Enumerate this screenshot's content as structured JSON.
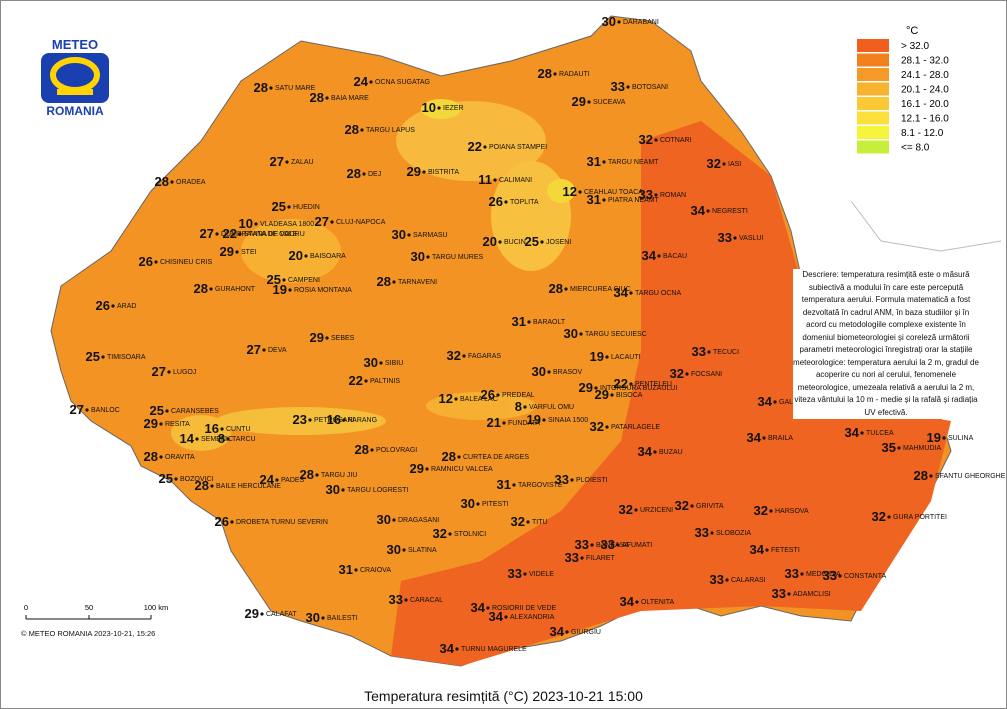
{
  "logo": {
    "line1": "METEO",
    "line2": "ROMANIA"
  },
  "legend": {
    "unit": "°C",
    "items": [
      {
        "label": "> 32.0",
        "color": "#f0601c"
      },
      {
        "label": "28.1 - 32.0",
        "color": "#f37f1f"
      },
      {
        "label": "24.1 - 28.0",
        "color": "#f59a26"
      },
      {
        "label": "20.1 - 24.0",
        "color": "#f7b22e"
      },
      {
        "label": "16.1 - 20.0",
        "color": "#f9c936"
      },
      {
        "label": "12.1 - 16.0",
        "color": "#fbdf3b"
      },
      {
        "label": "8.1 - 12.0",
        "color": "#f7f43c"
      },
      {
        "label": "<= 8.0",
        "color": "#c8ee3c"
      }
    ]
  },
  "description": "Descriere: temperatura resimțită este o măsură subiectivă a modului în care este percepută temperatura aerului. Formula matematică a fost dezvoltată în cadrul ANM, în baza studiilor și în acord cu metodologiile complexe existente în domeniul biometeorologiei și coreleză următorii parametri meteorologici înregistrați orar la stațiile meteorologice: temperatura aerului la 2 m, gradul de acoperire cu nori al cerului, fenomenele meteorologice, umezeala relativă a aerului la 2 m, viteza vântului la 10 m - medie și la rafală și radiația UV efectivă.",
  "scale": [
    "0",
    "50",
    "100 km"
  ],
  "copyright": "© METEO ROMANIA 2023-10-21, 15:26",
  "title": "Temperatura resimțită (°C) 2023-10-21 15:00",
  "stations": [
    {
      "name": "SATU MARE",
      "value": "28"
    },
    {
      "name": "OCNA SUGATAG",
      "value": "24"
    },
    {
      "name": "BAIA MARE",
      "value": "28"
    },
    {
      "name": "IEZER",
      "value": "10"
    },
    {
      "name": "TARGU LAPUS",
      "value": "28"
    },
    {
      "name": "ZALAU",
      "value": "27"
    },
    {
      "name": "DEJ",
      "value": "28"
    },
    {
      "name": "BISTRITA",
      "value": "29"
    },
    {
      "name": "ORADEA",
      "value": "28"
    },
    {
      "name": "VLADEASA 1800",
      "value": "10"
    },
    {
      "name": "HUEDIN",
      "value": "25"
    },
    {
      "name": "CLUJ-NAPOCA",
      "value": "27"
    },
    {
      "name": "SARMASU",
      "value": "30"
    },
    {
      "name": "STANA DE VALE",
      "value": "22"
    },
    {
      "name": "CHISINEU CRIS",
      "value": "26"
    },
    {
      "name": "DUMBRAVITA DE CODRU",
      "value": "27"
    },
    {
      "name": "STEI",
      "value": "29"
    },
    {
      "name": "BAISOARA",
      "value": "20"
    },
    {
      "name": "TARGU MURES",
      "value": "30"
    },
    {
      "name": "CAMPENI",
      "value": "25"
    },
    {
      "name": "ROSIA MONTANA",
      "value": "19"
    },
    {
      "name": "GURAHONT",
      "value": "28"
    },
    {
      "name": "TARNAVENI",
      "value": "28"
    },
    {
      "name": "ARAD",
      "value": "26"
    },
    {
      "name": "SEBES",
      "value": "29"
    },
    {
      "name": "DEVA",
      "value": "27"
    },
    {
      "name": "SIBIU",
      "value": "30"
    },
    {
      "name": "FAGARAS",
      "value": "32"
    },
    {
      "name": "TIMISOARA",
      "value": "25"
    },
    {
      "name": "LUGOJ",
      "value": "27"
    },
    {
      "name": "PALTINIS",
      "value": "22"
    },
    {
      "name": "BALEA LAC",
      "value": "12"
    },
    {
      "name": "VARFUL OMU",
      "value": "8"
    },
    {
      "name": "PREDEAL",
      "value": "26"
    },
    {
      "name": "SINAIA 1500",
      "value": "19"
    },
    {
      "name": "FUNDATA",
      "value": "21"
    },
    {
      "name": "BRASOV",
      "value": "30"
    },
    {
      "name": "CURTEA DE ARGES",
      "value": "28"
    },
    {
      "name": "PETROSANI",
      "value": "23"
    },
    {
      "name": "PARANG",
      "value": "16"
    },
    {
      "name": "CARANSEBES",
      "value": "25"
    },
    {
      "name": "BANLOC",
      "value": "27"
    },
    {
      "name": "RESITA",
      "value": "29"
    },
    {
      "name": "CUNTU",
      "value": "16"
    },
    {
      "name": "TARCU",
      "value": "8"
    },
    {
      "name": "SEMENIC",
      "value": "14"
    },
    {
      "name": "ORAVITA",
      "value": "28"
    },
    {
      "name": "BOZOVICI",
      "value": "25"
    },
    {
      "name": "BAILE HERCULANE",
      "value": "28"
    },
    {
      "name": "PADES",
      "value": "24"
    },
    {
      "name": "TARGU JIU",
      "value": "28"
    },
    {
      "name": "POLOVRAGI",
      "value": "28"
    },
    {
      "name": "RAMNICU VALCEA",
      "value": "29"
    },
    {
      "name": "TARGU LOGRESTI",
      "value": "30"
    },
    {
      "name": "PITESTI",
      "value": "30"
    },
    {
      "name": "TARGOVISTE",
      "value": "31"
    },
    {
      "name": "DROBETA TURNU SEVERIN",
      "value": "26"
    },
    {
      "name": "DRAGASANI",
      "value": "30"
    },
    {
      "name": "STOLNICI",
      "value": "32"
    },
    {
      "name": "TITU",
      "value": "32"
    },
    {
      "name": "SLATINA",
      "value": "30"
    },
    {
      "name": "CRAIOVA",
      "value": "31"
    },
    {
      "name": "CARACAL",
      "value": "33"
    },
    {
      "name": "BAILESTI",
      "value": "30"
    },
    {
      "name": "CALAFAT",
      "value": "29"
    },
    {
      "name": "ROSIORII DE VEDE",
      "value": "34"
    },
    {
      "name": "ALEXANDRIA",
      "value": "34"
    },
    {
      "name": "TURNU MAGURELE",
      "value": "34"
    },
    {
      "name": "VIDELE",
      "value": "33"
    },
    {
      "name": "GIURGIU",
      "value": "34"
    },
    {
      "name": "BANEASA",
      "value": "33"
    },
    {
      "name": "AFUMATI",
      "value": "33"
    },
    {
      "name": "FILARET",
      "value": "33"
    },
    {
      "name": "PLOIESTI",
      "value": "33"
    },
    {
      "name": "URZICENI",
      "value": "32"
    },
    {
      "name": "OLTENITA",
      "value": "34"
    },
    {
      "name": "CALARASI",
      "value": "33"
    },
    {
      "name": "FETESTI",
      "value": "34"
    },
    {
      "name": "SLOBOZIA",
      "value": "33"
    },
    {
      "name": "GRIVITA",
      "value": "32"
    },
    {
      "name": "HARSOVA",
      "value": "32"
    },
    {
      "name": "MEDGIDIA",
      "value": "33"
    },
    {
      "name": "CONSTANTA",
      "value": "33"
    },
    {
      "name": "ADAMCLISI",
      "value": "33"
    },
    {
      "name": "GURA PORTITEI",
      "value": "32"
    },
    {
      "name": "SFANTU GHEORGHE",
      "value": "28"
    },
    {
      "name": "MAHMUDIA",
      "value": "35"
    },
    {
      "name": "TULCEA",
      "value": "34"
    },
    {
      "name": "SULINA",
      "value": "19"
    },
    {
      "name": "BRAILA",
      "value": "34"
    },
    {
      "name": "GALATI",
      "value": "34"
    },
    {
      "name": "BUZAU",
      "value": "34"
    },
    {
      "name": "PATARLAGELE",
      "value": "32"
    },
    {
      "name": "FOCSANI",
      "value": "32"
    },
    {
      "name": "TECUCI",
      "value": "33"
    },
    {
      "name": "BISOCA",
      "value": "29"
    },
    {
      "name": "PENTELEU",
      "value": "22"
    },
    {
      "name": "INTORSURA BUZAULUI",
      "value": "29"
    },
    {
      "name": "LACAUTI",
      "value": "19"
    },
    {
      "name": "TARGU SECUIESC",
      "value": "30"
    },
    {
      "name": "BARAOLT",
      "value": "31"
    },
    {
      "name": "MIERCUREA CIUC",
      "value": "28"
    },
    {
      "name": "TARGU OCNA",
      "value": "34"
    },
    {
      "name": "BACAU",
      "value": "34"
    },
    {
      "name": "VASLUI",
      "value": "33"
    },
    {
      "name": "NEGRESTI",
      "value": "34"
    },
    {
      "name": "ROMAN",
      "value": "33"
    },
    {
      "name": "PIATRA NEAMT",
      "value": "31"
    },
    {
      "name": "CEAHLAU TOACA",
      "value": "12"
    },
    {
      "name": "TARGU NEAMT",
      "value": "31"
    },
    {
      "name": "COTNARI",
      "value": "32"
    },
    {
      "name": "IASI",
      "value": "32"
    },
    {
      "name": "BOTOSANI",
      "value": "33"
    },
    {
      "name": "SUCEAVA",
      "value": "29"
    },
    {
      "name": "RADAUTI",
      "value": "28"
    },
    {
      "name": "DARABANI",
      "value": "30"
    },
    {
      "name": "POIANA STAMPEI",
      "value": "22"
    },
    {
      "name": "CALIMANI",
      "value": "11"
    },
    {
      "name": "TOPLITA",
      "value": "26"
    },
    {
      "name": "JOSENI",
      "value": "25"
    },
    {
      "name": "BUCIN",
      "value": "20"
    }
  ]
}
